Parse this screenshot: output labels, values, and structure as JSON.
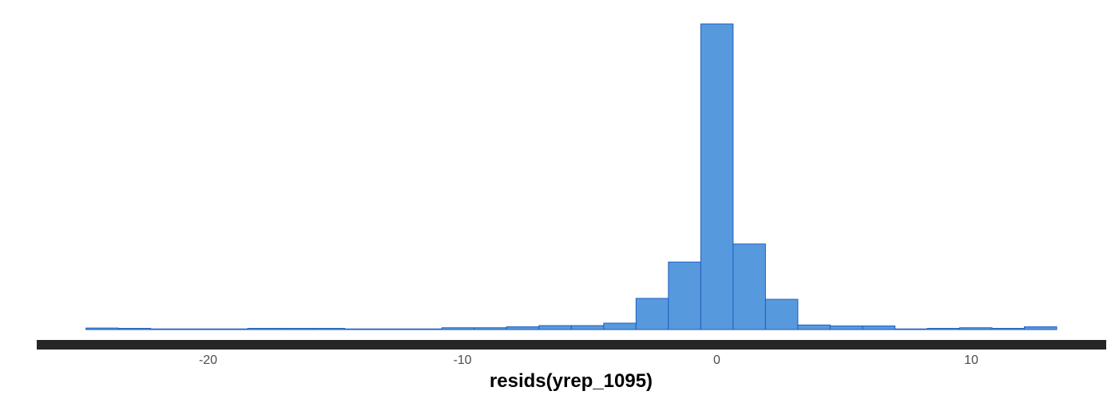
{
  "chart_data": {
    "type": "bar",
    "xlabel": "resids(yrep_1095)",
    "ylabel": "",
    "title": "",
    "xlim": [
      -26.5,
      13.9
    ],
    "ylim": [
      0,
      1000
    ],
    "bin_width": 1.272,
    "bins": [
      {
        "left": -24.8,
        "right": -23.528,
        "count": 5
      },
      {
        "left": -23.528,
        "right": -22.256,
        "count": 4
      },
      {
        "left": -22.256,
        "right": -20.984,
        "count": 2
      },
      {
        "left": -20.984,
        "right": -19.712,
        "count": 2
      },
      {
        "left": -19.712,
        "right": -18.44,
        "count": 2
      },
      {
        "left": -18.44,
        "right": -17.168,
        "count": 4
      },
      {
        "left": -17.168,
        "right": -15.896,
        "count": 4
      },
      {
        "left": -15.896,
        "right": -14.624,
        "count": 4
      },
      {
        "left": -14.624,
        "right": -13.352,
        "count": 2
      },
      {
        "left": -13.352,
        "right": -12.08,
        "count": 2
      },
      {
        "left": -12.08,
        "right": -10.808,
        "count": 2
      },
      {
        "left": -10.808,
        "right": -9.536,
        "count": 6
      },
      {
        "left": -9.536,
        "right": -8.264,
        "count": 6
      },
      {
        "left": -8.264,
        "right": -6.992,
        "count": 9
      },
      {
        "left": -6.992,
        "right": -5.72,
        "count": 13
      },
      {
        "left": -5.72,
        "right": -4.448,
        "count": 13
      },
      {
        "left": -4.448,
        "right": -3.176,
        "count": 21
      },
      {
        "left": -3.176,
        "right": -1.904,
        "count": 102
      },
      {
        "left": -1.904,
        "right": -0.632,
        "count": 221
      },
      {
        "left": -0.632,
        "right": 0.64,
        "count": 1000
      },
      {
        "left": 0.64,
        "right": 1.912,
        "count": 280
      },
      {
        "left": 1.912,
        "right": 3.184,
        "count": 99
      },
      {
        "left": 3.184,
        "right": 4.456,
        "count": 15
      },
      {
        "left": 4.456,
        "right": 5.728,
        "count": 12
      },
      {
        "left": 5.728,
        "right": 7.0,
        "count": 12
      },
      {
        "left": 7.0,
        "right": 8.272,
        "count": 2
      },
      {
        "left": 8.272,
        "right": 9.544,
        "count": 4
      },
      {
        "left": 9.544,
        "right": 10.816,
        "count": 6
      },
      {
        "left": 10.816,
        "right": 12.088,
        "count": 4
      },
      {
        "left": 12.088,
        "right": 13.36,
        "count": 9
      }
    ],
    "x_ticks": [
      {
        "value": -20,
        "label": "-20"
      },
      {
        "value": -10,
        "label": "-10"
      },
      {
        "value": 0,
        "label": "0"
      },
      {
        "value": 10,
        "label": "10"
      }
    ],
    "grid": false,
    "legend": "none",
    "colors": {
      "bar_fill": "#5799dd",
      "bar_stroke": "#1f5fbf",
      "axis_line": "#262626",
      "tick_text": "#4d4d4d",
      "title_text": "#000000"
    }
  }
}
